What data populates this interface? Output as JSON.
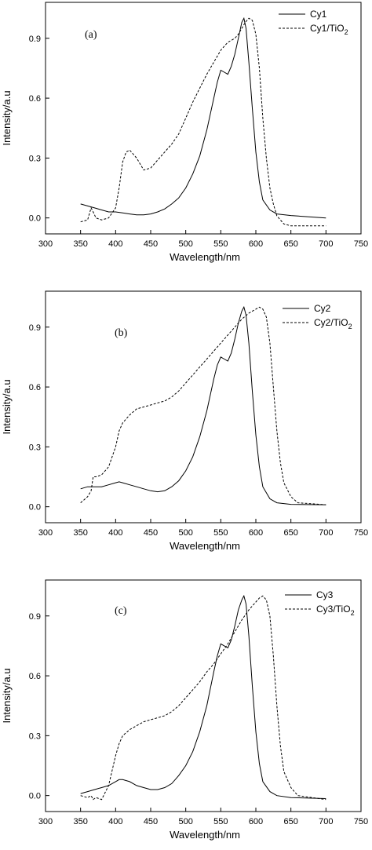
{
  "chart_data": [
    {
      "type": "line",
      "panel_label": "(a)",
      "xlabel": "Wavelength/nm",
      "ylabel": "Intensity/a.u",
      "xlim": [
        300,
        750
      ],
      "ylim": [
        -0.08,
        1.08
      ],
      "xticks": [
        "300",
        "350",
        "400",
        "450",
        "500",
        "550",
        "600",
        "650",
        "700",
        "750"
      ],
      "yticks": [
        "0.0",
        "0.3",
        "0.6",
        "0.9"
      ],
      "legend_position": "top-right",
      "legend": [
        {
          "label": "Cy1",
          "subscript": "",
          "style": "solid"
        },
        {
          "label": "Cy1/TiO",
          "subscript": "2",
          "style": "dashed"
        }
      ],
      "series": [
        {
          "style": "solid",
          "x": [
            350,
            360,
            370,
            380,
            390,
            400,
            410,
            420,
            430,
            440,
            450,
            460,
            470,
            480,
            490,
            500,
            510,
            520,
            530,
            540,
            545,
            550,
            555,
            560,
            565,
            570,
            575,
            580,
            583,
            586,
            590,
            595,
            600,
            605,
            610,
            620,
            630,
            650,
            700
          ],
          "y": [
            0.07,
            0.06,
            0.05,
            0.04,
            0.03,
            0.03,
            0.025,
            0.02,
            0.015,
            0.015,
            0.02,
            0.03,
            0.045,
            0.07,
            0.1,
            0.15,
            0.22,
            0.31,
            0.44,
            0.6,
            0.68,
            0.74,
            0.73,
            0.72,
            0.76,
            0.82,
            0.9,
            0.98,
            1.0,
            0.95,
            0.78,
            0.55,
            0.33,
            0.18,
            0.09,
            0.04,
            0.02,
            0.012,
            0.0
          ]
        },
        {
          "style": "dashed",
          "x": [
            350,
            360,
            365,
            368,
            372,
            380,
            390,
            400,
            405,
            410,
            415,
            420,
            430,
            440,
            450,
            460,
            470,
            480,
            490,
            500,
            510,
            520,
            530,
            540,
            550,
            560,
            570,
            575,
            580,
            585,
            590,
            595,
            600,
            605,
            610,
            615,
            620,
            625,
            630,
            640,
            650,
            700
          ],
          "y": [
            -0.02,
            -0.01,
            0.05,
            0.03,
            0.0,
            -0.01,
            0.0,
            0.05,
            0.15,
            0.28,
            0.33,
            0.34,
            0.3,
            0.24,
            0.25,
            0.29,
            0.33,
            0.37,
            0.42,
            0.5,
            0.58,
            0.65,
            0.72,
            0.78,
            0.84,
            0.88,
            0.9,
            0.92,
            0.95,
            0.98,
            1.0,
            0.99,
            0.92,
            0.75,
            0.5,
            0.3,
            0.15,
            0.07,
            0.01,
            -0.03,
            -0.04,
            -0.04
          ]
        }
      ]
    },
    {
      "type": "line",
      "panel_label": "(b)",
      "xlabel": "Wavelength/nm",
      "ylabel": "Intensity/a.u",
      "xlim": [
        300,
        750
      ],
      "ylim": [
        -0.08,
        1.08
      ],
      "xticks": [
        "300",
        "350",
        "400",
        "450",
        "500",
        "550",
        "600",
        "650",
        "700",
        "750"
      ],
      "yticks": [
        "0.0",
        "0.3",
        "0.6",
        "0.9"
      ],
      "legend_position": "top-right",
      "legend": [
        {
          "label": "Cy2",
          "subscript": "",
          "style": "solid"
        },
        {
          "label": "Cy2/TiO",
          "subscript": "2",
          "style": "dashed"
        }
      ],
      "series": [
        {
          "style": "solid",
          "x": [
            350,
            360,
            370,
            380,
            390,
            400,
            405,
            410,
            420,
            430,
            440,
            450,
            460,
            470,
            480,
            490,
            500,
            510,
            520,
            530,
            540,
            545,
            550,
            555,
            560,
            565,
            570,
            575,
            580,
            583,
            586,
            590,
            595,
            600,
            605,
            610,
            620,
            630,
            650,
            700
          ],
          "y": [
            0.09,
            0.1,
            0.1,
            0.1,
            0.11,
            0.12,
            0.125,
            0.12,
            0.11,
            0.1,
            0.09,
            0.08,
            0.075,
            0.08,
            0.1,
            0.13,
            0.18,
            0.25,
            0.35,
            0.48,
            0.64,
            0.71,
            0.75,
            0.74,
            0.73,
            0.77,
            0.84,
            0.92,
            0.98,
            1.0,
            0.96,
            0.82,
            0.58,
            0.36,
            0.2,
            0.1,
            0.04,
            0.02,
            0.012,
            0.01
          ]
        },
        {
          "style": "dashed",
          "x": [
            350,
            360,
            365,
            368,
            372,
            380,
            390,
            400,
            405,
            410,
            420,
            430,
            440,
            450,
            460,
            470,
            480,
            490,
            500,
            510,
            520,
            530,
            540,
            550,
            560,
            570,
            580,
            590,
            600,
            605,
            610,
            615,
            620,
            625,
            630,
            635,
            640,
            650,
            660,
            700
          ],
          "y": [
            0.02,
            0.05,
            0.08,
            0.15,
            0.15,
            0.16,
            0.2,
            0.3,
            0.38,
            0.42,
            0.46,
            0.49,
            0.5,
            0.51,
            0.52,
            0.53,
            0.55,
            0.58,
            0.62,
            0.66,
            0.7,
            0.74,
            0.78,
            0.82,
            0.86,
            0.9,
            0.94,
            0.97,
            0.99,
            1.0,
            0.99,
            0.95,
            0.82,
            0.6,
            0.38,
            0.22,
            0.12,
            0.05,
            0.02,
            0.01
          ]
        }
      ]
    },
    {
      "type": "line",
      "panel_label": "(c)",
      "xlabel": "Wavelength/nm",
      "ylabel": "Intensity/a.u",
      "xlim": [
        300,
        750
      ],
      "ylim": [
        -0.08,
        1.08
      ],
      "xticks": [
        "300",
        "350",
        "400",
        "450",
        "500",
        "550",
        "600",
        "650",
        "700",
        "750"
      ],
      "yticks": [
        "0.0",
        "0.3",
        "0.6",
        "0.9"
      ],
      "legend_position": "top-right",
      "legend": [
        {
          "label": "Cy3",
          "subscript": "",
          "style": "solid"
        },
        {
          "label": "Cy3/TiO",
          "subscript": "2",
          "style": "dashed"
        }
      ],
      "series": [
        {
          "style": "solid",
          "x": [
            350,
            360,
            370,
            380,
            390,
            400,
            405,
            410,
            420,
            430,
            440,
            450,
            460,
            470,
            480,
            490,
            500,
            510,
            520,
            530,
            540,
            545,
            550,
            555,
            560,
            565,
            570,
            575,
            580,
            583,
            586,
            590,
            595,
            600,
            605,
            610,
            620,
            630,
            650,
            700
          ],
          "y": [
            0.01,
            0.02,
            0.03,
            0.04,
            0.05,
            0.07,
            0.08,
            0.08,
            0.07,
            0.05,
            0.04,
            0.03,
            0.03,
            0.04,
            0.06,
            0.1,
            0.15,
            0.22,
            0.32,
            0.45,
            0.62,
            0.7,
            0.76,
            0.75,
            0.74,
            0.78,
            0.85,
            0.93,
            0.98,
            1.0,
            0.96,
            0.8,
            0.55,
            0.32,
            0.16,
            0.07,
            0.02,
            0.0,
            -0.01,
            -0.015
          ]
        },
        {
          "style": "dashed",
          "x": [
            350,
            360,
            365,
            368,
            372,
            380,
            390,
            400,
            405,
            410,
            420,
            430,
            440,
            450,
            460,
            470,
            480,
            490,
            500,
            510,
            520,
            530,
            540,
            550,
            560,
            570,
            580,
            590,
            600,
            605,
            610,
            615,
            620,
            625,
            630,
            635,
            640,
            650,
            660,
            700
          ],
          "y": [
            0.0,
            -0.01,
            0.0,
            -0.02,
            -0.01,
            -0.02,
            0.05,
            0.2,
            0.26,
            0.3,
            0.33,
            0.35,
            0.37,
            0.38,
            0.39,
            0.4,
            0.42,
            0.45,
            0.49,
            0.53,
            0.57,
            0.62,
            0.66,
            0.71,
            0.76,
            0.82,
            0.88,
            0.93,
            0.97,
            0.99,
            1.0,
            0.98,
            0.9,
            0.7,
            0.45,
            0.25,
            0.12,
            0.04,
            0.0,
            -0.02
          ]
        }
      ]
    }
  ]
}
